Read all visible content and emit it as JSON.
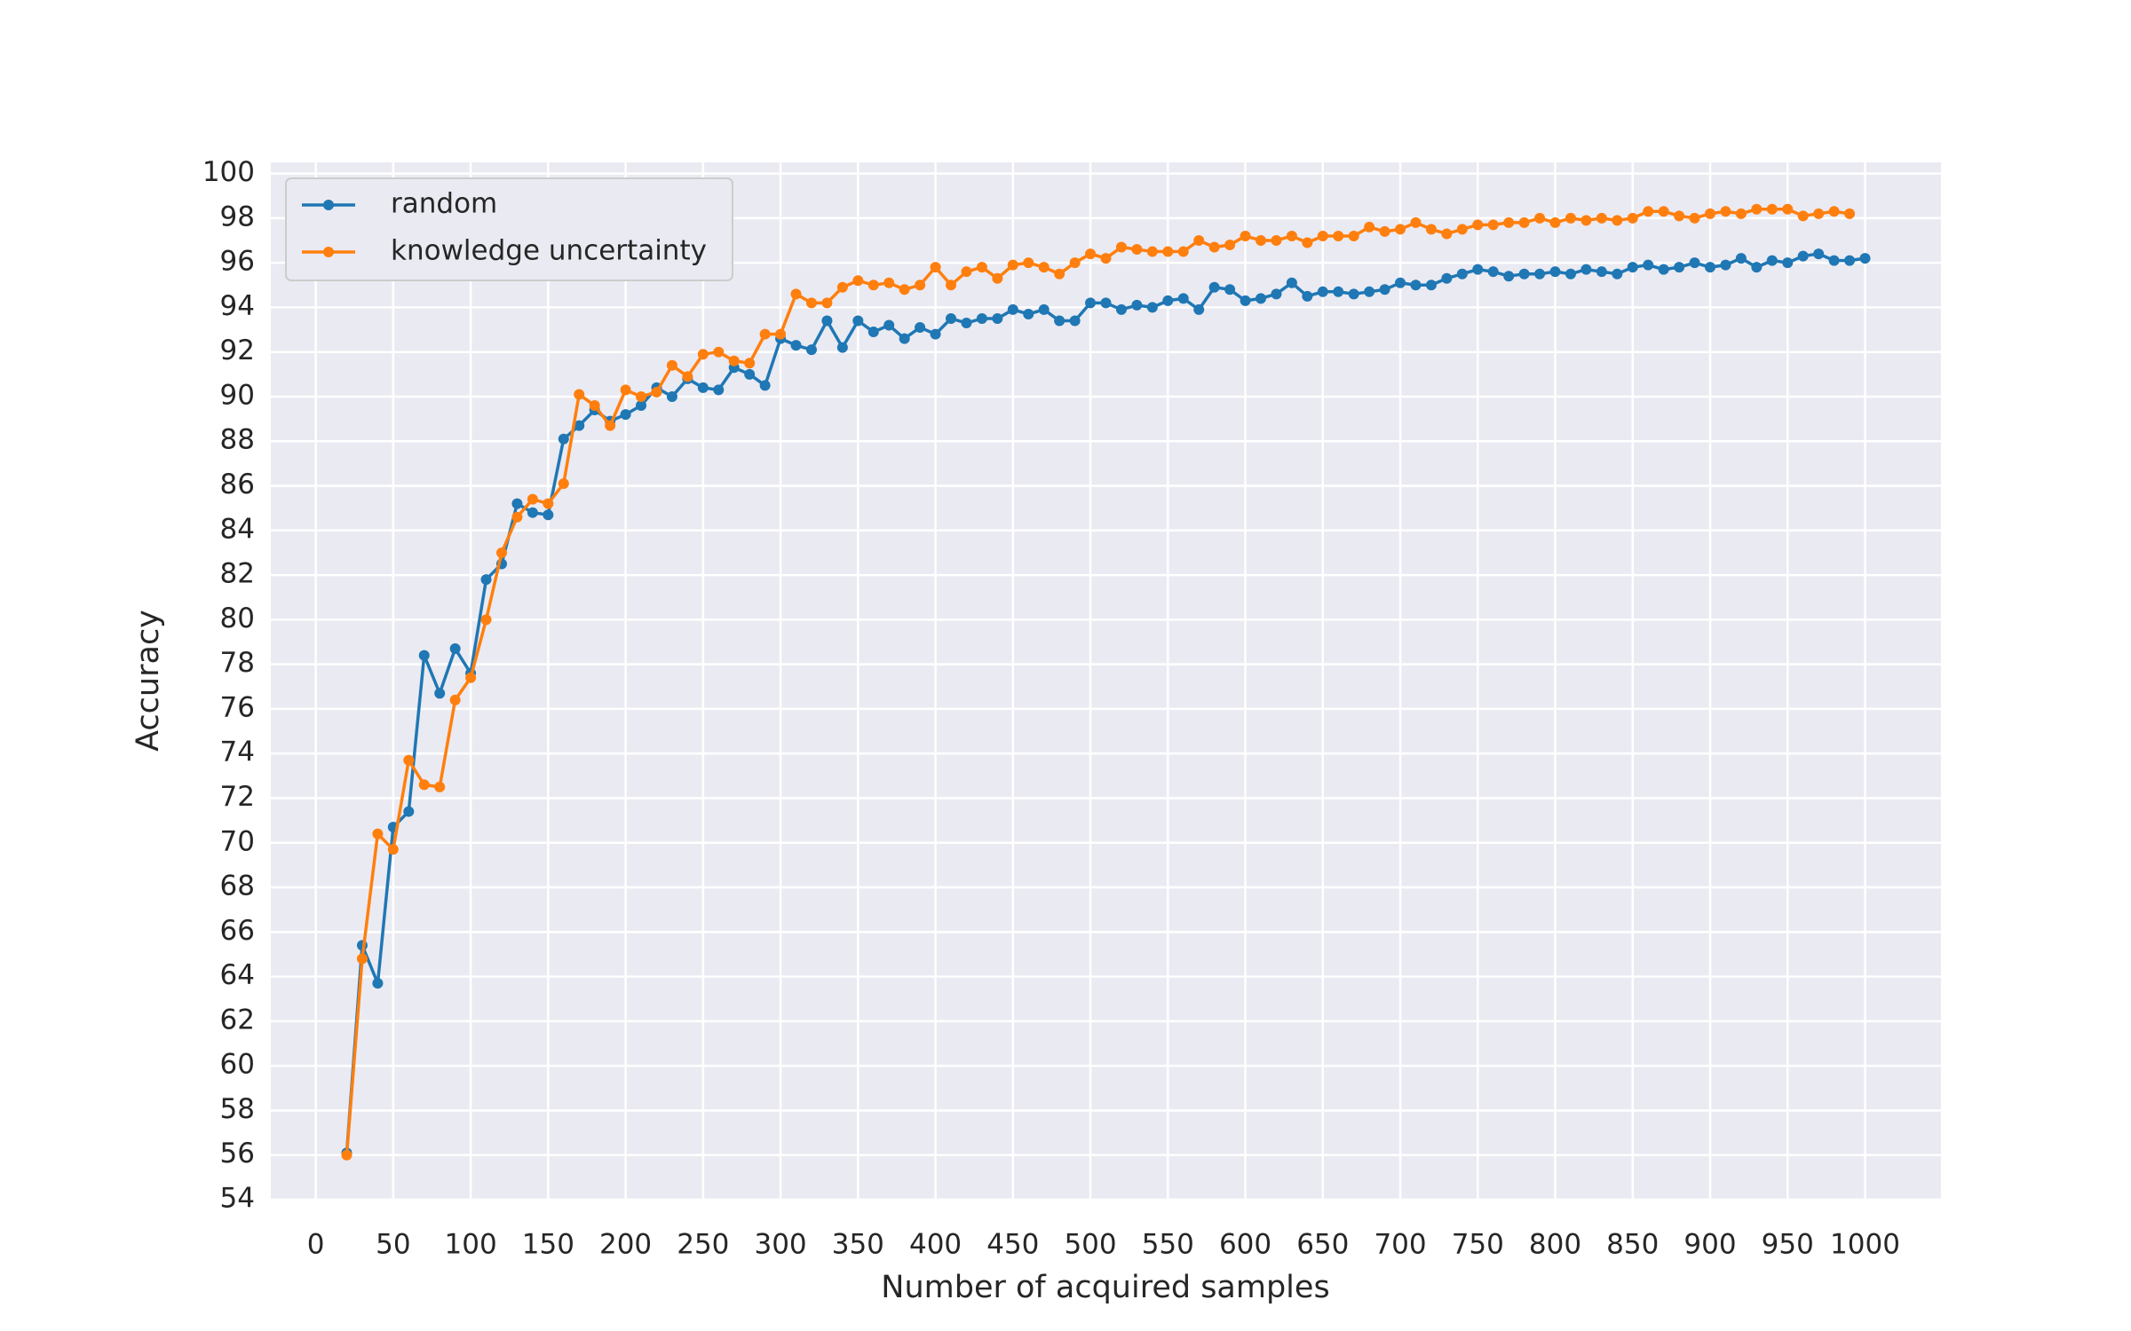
{
  "chart_data": {
    "type": "line",
    "xlabel": "Number of acquired samples",
    "ylabel": "Accuracy",
    "xlim": [
      -29,
      1049
    ],
    "ylim": [
      54,
      100.5
    ],
    "xticks": [
      0,
      50,
      100,
      150,
      200,
      250,
      300,
      350,
      400,
      450,
      500,
      550,
      600,
      650,
      700,
      750,
      800,
      850,
      900,
      950,
      1000
    ],
    "yticks": [
      54,
      56,
      58,
      60,
      62,
      64,
      66,
      68,
      70,
      72,
      74,
      76,
      78,
      80,
      82,
      84,
      86,
      88,
      90,
      92,
      94,
      96,
      98,
      100
    ],
    "grid": true,
    "legend": "upper left",
    "series": [
      {
        "name": "random",
        "color": "#1f77b4",
        "x": [
          20,
          30,
          40,
          50,
          60,
          70,
          80,
          90,
          100,
          110,
          120,
          130,
          140,
          150,
          160,
          170,
          180,
          190,
          200,
          210,
          220,
          230,
          240,
          250,
          260,
          270,
          280,
          290,
          300,
          310,
          320,
          330,
          340,
          350,
          360,
          370,
          380,
          390,
          400,
          410,
          420,
          430,
          440,
          450,
          460,
          470,
          480,
          490,
          500,
          510,
          520,
          530,
          540,
          550,
          560,
          570,
          580,
          590,
          600,
          610,
          620,
          630,
          640,
          650,
          660,
          670,
          680,
          690,
          700,
          710,
          720,
          730,
          740,
          750,
          760,
          770,
          780,
          790,
          800,
          810,
          820,
          830,
          840,
          850,
          860,
          870,
          880,
          890,
          900,
          910,
          920,
          930,
          940,
          950,
          960,
          970,
          980,
          990,
          1000
        ],
        "values": [
          56.1,
          65.4,
          63.7,
          70.7,
          71.4,
          78.4,
          76.7,
          78.7,
          77.6,
          81.8,
          82.5,
          85.2,
          84.8,
          84.7,
          88.1,
          88.7,
          89.4,
          88.9,
          89.2,
          89.6,
          90.4,
          90.0,
          90.8,
          90.4,
          90.3,
          91.3,
          91.0,
          90.5,
          92.6,
          92.3,
          92.1,
          93.4,
          92.2,
          93.4,
          92.9,
          93.2,
          92.6,
          93.1,
          92.8,
          93.5,
          93.3,
          93.5,
          93.5,
          93.9,
          93.7,
          93.9,
          93.4,
          93.4,
          94.2,
          94.2,
          93.9,
          94.1,
          94.0,
          94.3,
          94.4,
          93.9,
          94.9,
          94.8,
          94.3,
          94.4,
          94.6,
          95.1,
          94.5,
          94.7,
          94.7,
          94.6,
          94.7,
          94.8,
          95.1,
          95.0,
          95.0,
          95.3,
          95.5,
          95.7,
          95.6,
          95.4,
          95.5,
          95.5,
          95.6,
          95.5,
          95.7,
          95.6,
          95.5,
          95.8,
          95.9,
          95.7,
          95.8,
          96.0,
          95.8,
          95.9,
          96.2,
          95.8,
          96.1,
          96.0,
          96.3,
          96.4,
          96.1,
          96.1,
          96.2
        ]
      },
      {
        "name": "knowledge uncertainty",
        "color": "#ff7f0e",
        "x": [
          20,
          30,
          40,
          50,
          60,
          70,
          80,
          90,
          100,
          110,
          120,
          130,
          140,
          150,
          160,
          170,
          180,
          190,
          200,
          210,
          220,
          230,
          240,
          250,
          260,
          270,
          280,
          290,
          300,
          310,
          320,
          330,
          340,
          350,
          360,
          370,
          380,
          390,
          400,
          410,
          420,
          430,
          440,
          450,
          460,
          470,
          480,
          490,
          500,
          510,
          520,
          530,
          540,
          550,
          560,
          570,
          580,
          590,
          600,
          610,
          620,
          630,
          640,
          650,
          660,
          670,
          680,
          690,
          700,
          710,
          720,
          730,
          740,
          750,
          760,
          770,
          780,
          790,
          800,
          810,
          820,
          830,
          840,
          850,
          860,
          870,
          880,
          890,
          900,
          910,
          920,
          930,
          940,
          950,
          960,
          970,
          980,
          990
        ],
        "values": [
          56.0,
          64.8,
          70.4,
          69.7,
          73.7,
          72.6,
          72.5,
          76.4,
          77.4,
          80.0,
          83.0,
          84.6,
          85.4,
          85.2,
          86.1,
          90.1,
          89.6,
          88.7,
          90.3,
          90.0,
          90.2,
          91.4,
          90.9,
          91.9,
          92.0,
          91.6,
          91.5,
          92.8,
          92.8,
          94.6,
          94.2,
          94.2,
          94.9,
          95.2,
          95.0,
          95.1,
          94.8,
          95.0,
          95.8,
          95.0,
          95.6,
          95.8,
          95.3,
          95.9,
          96.0,
          95.8,
          95.5,
          96.0,
          96.4,
          96.2,
          96.7,
          96.6,
          96.5,
          96.5,
          96.5,
          97.0,
          96.7,
          96.8,
          97.2,
          97.0,
          97.0,
          97.2,
          96.9,
          97.2,
          97.2,
          97.2,
          97.6,
          97.4,
          97.5,
          97.8,
          97.5,
          97.3,
          97.5,
          97.7,
          97.7,
          97.8,
          97.8,
          98.0,
          97.8,
          98.0,
          97.9,
          98.0,
          97.9,
          98.0,
          98.3,
          98.3,
          98.1,
          98.0,
          98.2,
          98.3,
          98.2,
          98.4,
          98.4,
          98.4,
          98.1,
          98.2,
          98.3,
          98.2
        ]
      }
    ]
  }
}
